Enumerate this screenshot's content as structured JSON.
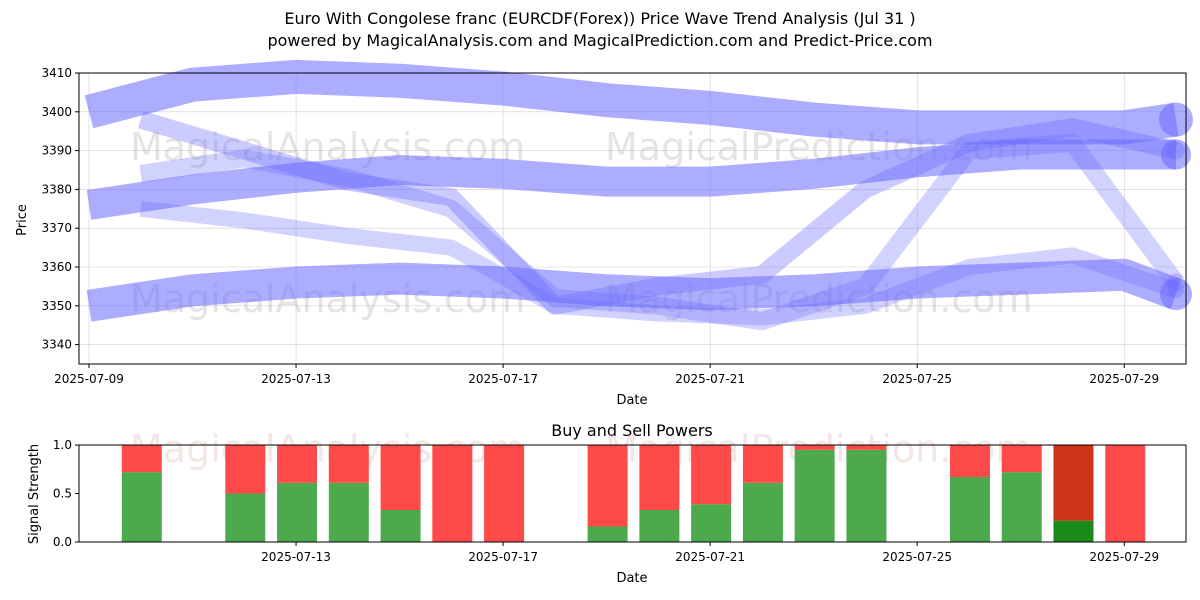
{
  "header": {
    "title": "Euro With Congolese franc (EURCDF(Forex)) Price Wave Trend Analysis (Jul 31 )",
    "subtitle": "powered by MagicalAnalysis.com and MagicalPrediction.com and Predict-Price.com"
  },
  "watermarks": [
    "MagicalAnalysis.com",
    "MagicalPrediction.com"
  ],
  "chart_data": [
    {
      "type": "line",
      "style": "wave-bands",
      "xlabel": "Date",
      "ylabel": "Price",
      "x_ticks": [
        "2025-07-09",
        "2025-07-13",
        "2025-07-17",
        "2025-07-21",
        "2025-07-25",
        "2025-07-29"
      ],
      "y_ticks": [
        3340,
        3350,
        3360,
        3370,
        3380,
        3390,
        3400,
        3410
      ],
      "ylim": [
        3335,
        3410
      ],
      "xlim": [
        "2025-07-09",
        "2025-07-30"
      ],
      "grid": true,
      "band_color": "#6a6aff",
      "series": [
        {
          "x": [
            "2025-07-09",
            "2025-07-11",
            "2025-07-13",
            "2025-07-15",
            "2025-07-17",
            "2025-07-19",
            "2025-07-21",
            "2025-07-23",
            "2025-07-25",
            "2025-07-27",
            "2025-07-29",
            "2025-07-30"
          ],
          "y": [
            3400,
            3407,
            3409,
            3408,
            3406,
            3403,
            3401,
            3398,
            3396,
            3396,
            3396,
            3398
          ]
        },
        {
          "x": [
            "2025-07-09",
            "2025-07-11",
            "2025-07-13",
            "2025-07-15",
            "2025-07-17",
            "2025-07-19",
            "2025-07-21",
            "2025-07-23",
            "2025-07-25",
            "2025-07-27",
            "2025-07-29",
            "2025-07-30"
          ],
          "y": [
            3376,
            3380,
            3383,
            3385,
            3384,
            3382,
            3382,
            3384,
            3387,
            3389,
            3389,
            3389
          ]
        },
        {
          "x": [
            "2025-07-09",
            "2025-07-11",
            "2025-07-13",
            "2025-07-15",
            "2025-07-17",
            "2025-07-19",
            "2025-07-21",
            "2025-07-23",
            "2025-07-25",
            "2025-07-27",
            "2025-07-29",
            "2025-07-30"
          ],
          "y": [
            3350,
            3354,
            3356,
            3357,
            3356,
            3354,
            3353,
            3354,
            3356,
            3357,
            3358,
            3353
          ]
        },
        {
          "x": [
            "2025-07-10",
            "2025-07-12",
            "2025-07-14",
            "2025-07-16",
            "2025-07-18",
            "2025-07-20",
            "2025-07-22",
            "2025-07-24",
            "2025-07-26",
            "2025-07-28",
            "2025-07-30"
          ],
          "y": [
            3398,
            3390,
            3382,
            3378,
            3350,
            3355,
            3358,
            3380,
            3392,
            3396,
            3390
          ]
        },
        {
          "x": [
            "2025-07-10",
            "2025-07-12",
            "2025-07-14",
            "2025-07-16",
            "2025-07-18",
            "2025-07-20",
            "2025-07-22",
            "2025-07-24",
            "2025-07-26",
            "2025-07-28",
            "2025-07-30"
          ],
          "y": [
            3384,
            3388,
            3383,
            3375,
            3352,
            3350,
            3346,
            3355,
            3390,
            3392,
            3356
          ]
        },
        {
          "x": [
            "2025-07-10",
            "2025-07-12",
            "2025-07-14",
            "2025-07-16",
            "2025-07-18",
            "2025-07-20",
            "2025-07-22",
            "2025-07-24",
            "2025-07-26",
            "2025-07-28",
            "2025-07-30"
          ],
          "y": [
            3375,
            3372,
            3368,
            3365,
            3350,
            3348,
            3347,
            3350,
            3360,
            3363,
            3354
          ]
        }
      ]
    },
    {
      "type": "bar",
      "stacked": true,
      "title": "Buy and Sell Powers",
      "xlabel": "Date",
      "ylabel": "Signal Strength",
      "x_ticks": [
        "2025-07-13",
        "2025-07-17",
        "2025-07-21",
        "2025-07-25",
        "2025-07-29"
      ],
      "y_ticks": [
        "0.0",
        "0.5",
        "1.0"
      ],
      "ylim": [
        0,
        1
      ],
      "colors": {
        "buy": "#4caa4c",
        "sell": "#ff4a4a",
        "buy_highlight": "#1a8a1a",
        "sell_highlight": "#cc3319"
      },
      "bars": [
        {
          "date": "2025-07-10",
          "buy": 0.72,
          "sell": 0.28
        },
        {
          "date": "2025-07-12",
          "buy": 0.5,
          "sell": 0.5
        },
        {
          "date": "2025-07-13",
          "buy": 0.61,
          "sell": 0.39
        },
        {
          "date": "2025-07-14",
          "buy": 0.61,
          "sell": 0.39
        },
        {
          "date": "2025-07-15",
          "buy": 0.33,
          "sell": 0.67
        },
        {
          "date": "2025-07-16",
          "buy": 0.0,
          "sell": 1.0
        },
        {
          "date": "2025-07-17",
          "buy": 0.0,
          "sell": 1.0
        },
        {
          "date": "2025-07-19",
          "buy": 0.16,
          "sell": 0.84
        },
        {
          "date": "2025-07-20",
          "buy": 0.33,
          "sell": 0.67
        },
        {
          "date": "2025-07-21",
          "buy": 0.39,
          "sell": 0.61
        },
        {
          "date": "2025-07-22",
          "buy": 0.61,
          "sell": 0.39
        },
        {
          "date": "2025-07-23",
          "buy": 0.95,
          "sell": 0.05
        },
        {
          "date": "2025-07-24",
          "buy": 0.95,
          "sell": 0.05
        },
        {
          "date": "2025-07-26",
          "buy": 0.67,
          "sell": 0.33
        },
        {
          "date": "2025-07-27",
          "buy": 0.72,
          "sell": 0.28
        },
        {
          "date": "2025-07-28",
          "buy": 0.22,
          "sell": 0.78,
          "highlight": true
        },
        {
          "date": "2025-07-29",
          "buy": 0.0,
          "sell": 1.0
        }
      ]
    }
  ]
}
